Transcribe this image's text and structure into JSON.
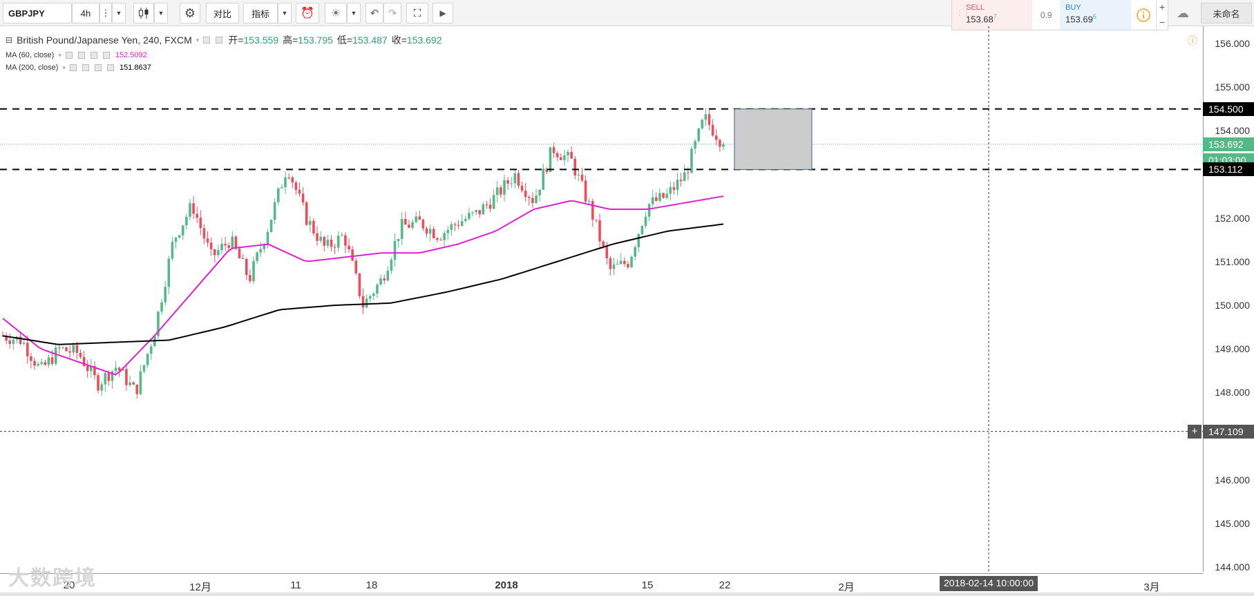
{
  "toolbar": {
    "symbol": "GBPJPY",
    "interval": "4h",
    "compare_label": "对比",
    "indicators_label": "指标",
    "layout_name": "未命名"
  },
  "trade": {
    "sell_label": "SELL",
    "sell_price": "153.68",
    "sell_pip": "7",
    "spread": "0.9",
    "buy_label": "BUY",
    "buy_price": "153.69",
    "buy_pip": "6",
    "plus": "+",
    "minus": "−"
  },
  "legend": {
    "title": "British Pound/Japanese Yen, 240, FXCM",
    "open_label": "开=",
    "open": "153.559",
    "high_label": "高=",
    "high": "153.795",
    "low_label": "低=",
    "low": "153.487",
    "close_label": "收=",
    "close": "153.692",
    "ma60_label": "MA (60, close)",
    "ma60_value": "152.5092",
    "ma200_label": "MA (200, close)",
    "ma200_value": "151.8637"
  },
  "price_axis": {
    "ticks": [
      "156.000",
      "155.000",
      "154.000",
      "152.000",
      "151.000",
      "150.000",
      "149.000",
      "148.000",
      "146.000",
      "145.000",
      "144.000"
    ],
    "tag_resistance": "154.500",
    "tag_last": "153.692",
    "tag_countdown": "01:03:00",
    "tag_support": "153.112",
    "tag_crosshair": "147.109",
    "crosshair_plus": "+"
  },
  "time_axis": {
    "ticks": [
      {
        "label": "20",
        "bold": false
      },
      {
        "label": "12月",
        "bold": false
      },
      {
        "label": "11",
        "bold": false
      },
      {
        "label": "18",
        "bold": false
      },
      {
        "label": "2018",
        "bold": true
      },
      {
        "label": "15",
        "bold": false
      },
      {
        "label": "22",
        "bold": false
      },
      {
        "label": "2月",
        "bold": false
      },
      {
        "label": "3月",
        "bold": false
      }
    ],
    "crosshair_time": "2018-02-14 10:00:00"
  },
  "watermark": "大数跨境",
  "colors": {
    "up": "#53b987",
    "down": "#eb4d5c",
    "ma60": "#e020d0",
    "ma200": "#000000",
    "last_tag": "#53b987",
    "level_tag": "#000000"
  },
  "chart_data": {
    "type": "candlestick",
    "symbol": "GBPJPY",
    "ylim": [
      143.8,
      156.3
    ],
    "horizontal_lines": [
      154.5,
      153.112,
      147.109
    ],
    "last_price": 153.692,
    "close_path": [
      149.3,
      149.2,
      148.5,
      149.0,
      148.9,
      148.2,
      148.6,
      148.0,
      149.4,
      151.5,
      152.3,
      151.1,
      151.5,
      150.6,
      151.8,
      153.2,
      152.0,
      151.3,
      151.6,
      150.0,
      150.6,
      151.8,
      151.9,
      151.6,
      151.9,
      152.1,
      152.5,
      153.0,
      152.4,
      153.6,
      153.3,
      152.2,
      150.8,
      151.0,
      152.3,
      152.5,
      153.0,
      154.3,
      153.692
    ],
    "ma60_path": [
      149.7,
      149.0,
      148.7,
      148.4,
      149.3,
      150.3,
      151.3,
      151.4,
      151.0,
      151.1,
      151.2,
      151.2,
      151.4,
      151.7,
      152.2,
      152.4,
      152.2,
      152.2,
      152.35,
      152.5
    ],
    "ma200_path": [
      149.3,
      149.1,
      149.15,
      149.2,
      149.5,
      149.9,
      150.0,
      150.05,
      150.3,
      150.6,
      151.0,
      151.4,
      151.7,
      151.86
    ]
  }
}
